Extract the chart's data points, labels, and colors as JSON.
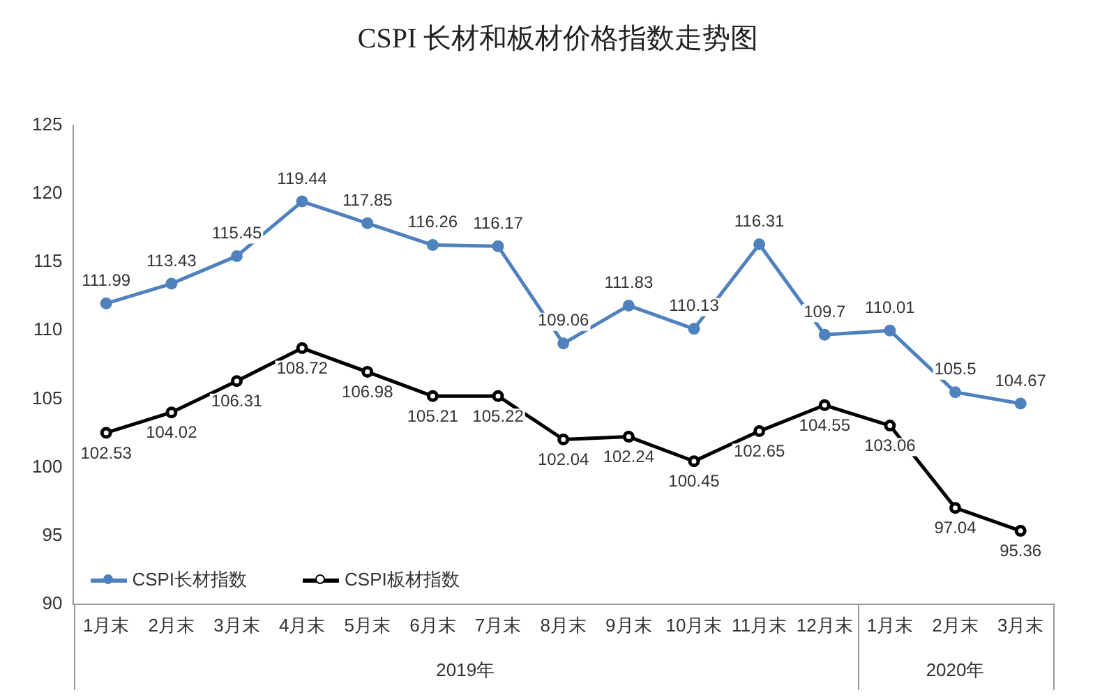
{
  "chart_data": {
    "type": "line",
    "title": "CSPI 长材和板材价格指数走势图",
    "categories": [
      "1月末",
      "2月末",
      "3月末",
      "4月末",
      "5月末",
      "6月末",
      "7月末",
      "8月末",
      "9月末",
      "10月末",
      "11月末",
      "12月末",
      "1月末",
      "2月末",
      "3月末"
    ],
    "series": [
      {
        "name": "CSPI长材指数",
        "color": "#4f81bd",
        "values": [
          111.99,
          113.43,
          115.45,
          119.44,
          117.85,
          116.26,
          116.17,
          109.06,
          111.83,
          110.13,
          116.31,
          109.7,
          110.01,
          105.5,
          104.67
        ]
      },
      {
        "name": "CSPI板材指数",
        "color": "#000000",
        "values": [
          102.53,
          104.02,
          106.31,
          108.72,
          106.98,
          105.21,
          105.22,
          102.04,
          102.24,
          100.45,
          102.65,
          104.55,
          103.06,
          97.04,
          95.36
        ]
      }
    ],
    "ylim": [
      90,
      125
    ],
    "yticks": [
      90,
      95,
      100,
      105,
      110,
      115,
      120,
      125
    ],
    "grid": false,
    "legend": "bottom left",
    "marker": "circle",
    "line_style": "solid",
    "data_labels": true,
    "annotations": [
      "2019年",
      "2020年"
    ]
  }
}
